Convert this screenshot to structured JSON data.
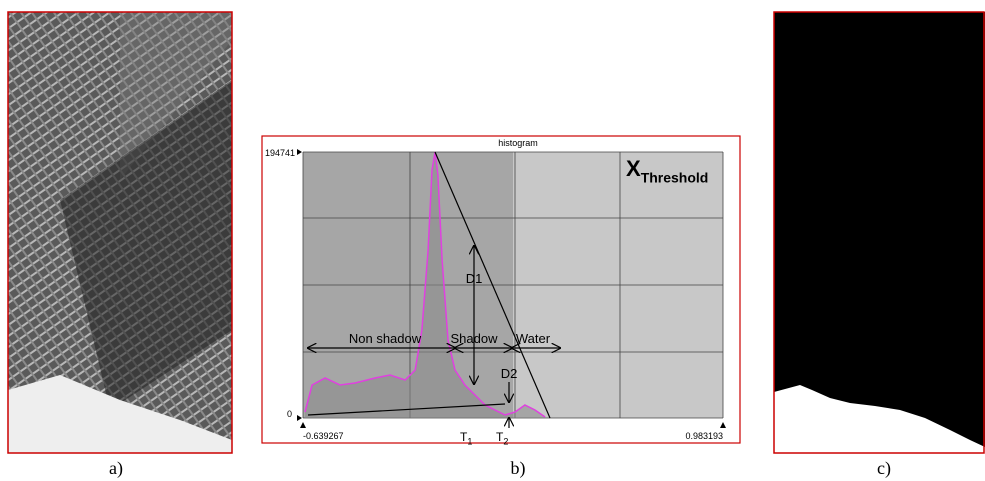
{
  "panels": [
    {
      "label": "a)"
    },
    {
      "label": "b)",
      "histogram": {
        "title": "histogram",
        "xlim": [
          -0.639267,
          0.983193
        ],
        "ylim": [
          0,
          194741
        ],
        "xticks": [
          -0.639267,
          0.983193
        ],
        "yticks": [
          0,
          194741
        ],
        "x": [
          -0.6315,
          -0.604,
          -0.554,
          -0.496,
          -0.438,
          -0.361,
          -0.303,
          -0.245,
          -0.206,
          -0.18,
          -0.156,
          -0.141,
          -0.129,
          -0.118,
          -0.102,
          -0.079,
          -0.052,
          -0.014,
          0.025,
          0.064,
          0.102,
          0.141,
          0.18,
          0.218,
          0.257,
          0.296
        ],
        "values": [
          4393,
          24160,
          29280,
          24160,
          25620,
          29280,
          31480,
          27820,
          35140,
          64420,
          123000,
          181560,
          194741,
          177900,
          115670,
          57100,
          35140,
          24160,
          16840,
          9520,
          5860,
          2200,
          4390,
          9520,
          5860,
          730
        ],
        "color": "#e040e0",
        "thresholds": [
          {
            "symbol": "T",
            "subscript": "1"
          },
          {
            "symbol": "T",
            "subscript": "2"
          }
        ],
        "regions": [
          "Non shadow",
          "Shadow",
          "Water"
        ],
        "distances": [
          "D1",
          "D2"
        ],
        "method": {
          "symbol": "X",
          "subscript": "Threshold"
        }
      }
    },
    {
      "label": "c)"
    }
  ]
}
